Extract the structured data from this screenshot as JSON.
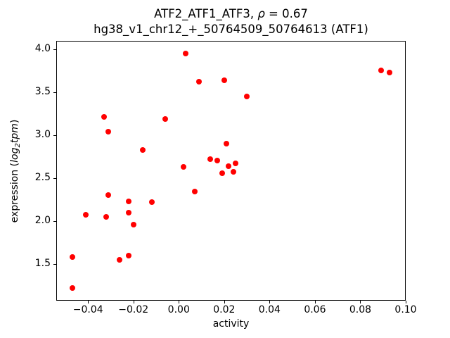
{
  "figure": {
    "title": {
      "line1_prefix": "ATF2_ATF1_ATF3, ",
      "line1_rho": "ρ",
      "line1_suffix": " = 0.67",
      "line2": "hg38_v1_chr12_+_50764509_50764613 (ATF1)"
    },
    "xlabel": "activity",
    "ylabel": {
      "prefix": "expression (",
      "log": "log",
      "sub": "2",
      "tpm": "tpm",
      "suffix": ")"
    }
  },
  "chart_data": {
    "type": "scatter",
    "title": "ATF2_ATF1_ATF3, ρ = 0.67",
    "subtitle": "hg38_v1_chr12_+_50764509_50764613 (ATF1)",
    "rho": 0.67,
    "xlabel": "activity",
    "ylabel": "expression (log2 tpm)",
    "xlim": [
      -0.054,
      0.1
    ],
    "ylim": [
      1.08,
      4.09
    ],
    "grid": false,
    "legend": null,
    "marker_color": "#ff0000",
    "x_ticks": [
      -0.04,
      -0.02,
      0.0,
      0.02,
      0.04,
      0.06,
      0.08,
      0.1
    ],
    "x_tick_labels": [
      "−0.04",
      "−0.02",
      "0.00",
      "0.02",
      "0.04",
      "0.06",
      "0.08",
      "0.10"
    ],
    "y_ticks": [
      1.5,
      2.0,
      2.5,
      3.0,
      3.5,
      4.0
    ],
    "y_tick_labels": [
      "1.5",
      "2.0",
      "2.5",
      "3.0",
      "3.5",
      "4.0"
    ],
    "points": [
      [
        -0.047,
        1.22
      ],
      [
        -0.047,
        1.58
      ],
      [
        -0.041,
        2.07
      ],
      [
        -0.033,
        3.21
      ],
      [
        -0.032,
        2.05
      ],
      [
        -0.031,
        3.04
      ],
      [
        -0.031,
        2.3
      ],
      [
        -0.026,
        1.55
      ],
      [
        -0.022,
        2.23
      ],
      [
        -0.022,
        2.1
      ],
      [
        -0.022,
        1.6
      ],
      [
        -0.02,
        1.96
      ],
      [
        -0.016,
        2.83
      ],
      [
        -0.012,
        2.22
      ],
      [
        -0.006,
        3.19
      ],
      [
        0.002,
        2.63
      ],
      [
        0.003,
        3.95
      ],
      [
        0.007,
        2.34
      ],
      [
        0.009,
        3.62
      ],
      [
        0.014,
        2.72
      ],
      [
        0.017,
        2.7
      ],
      [
        0.019,
        2.56
      ],
      [
        0.02,
        3.64
      ],
      [
        0.021,
        2.9
      ],
      [
        0.022,
        2.64
      ],
      [
        0.024,
        2.57
      ],
      [
        0.025,
        2.67
      ],
      [
        0.03,
        3.45
      ],
      [
        0.089,
        3.75
      ],
      [
        0.093,
        3.73
      ]
    ]
  }
}
